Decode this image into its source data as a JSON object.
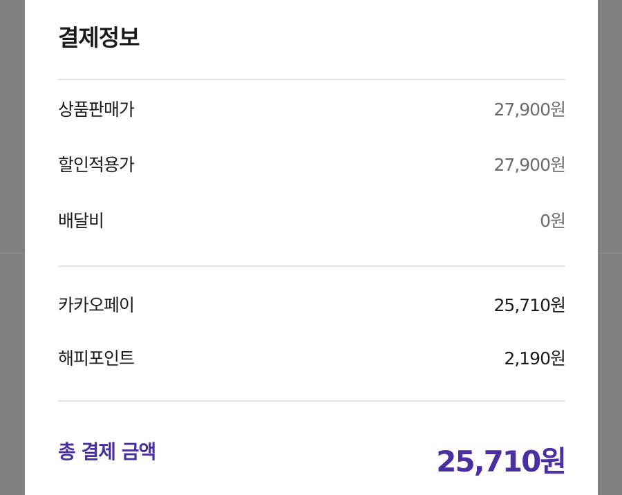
{
  "title": "결제정보",
  "price_rows": [
    {
      "label": "상품판매가",
      "value": "27,900원"
    },
    {
      "label": "할인적용가",
      "value": "27,900원"
    },
    {
      "label": "배달비",
      "value": "0원"
    }
  ],
  "payment_rows": [
    {
      "label": "카카오페이",
      "value": "25,710원"
    },
    {
      "label": "해피포인트",
      "value": "2,190원"
    }
  ],
  "total": {
    "label": "총 결제 금액",
    "value": "25,710원"
  },
  "colors": {
    "accent": "#4a2fa0",
    "overlay": "#808080"
  }
}
